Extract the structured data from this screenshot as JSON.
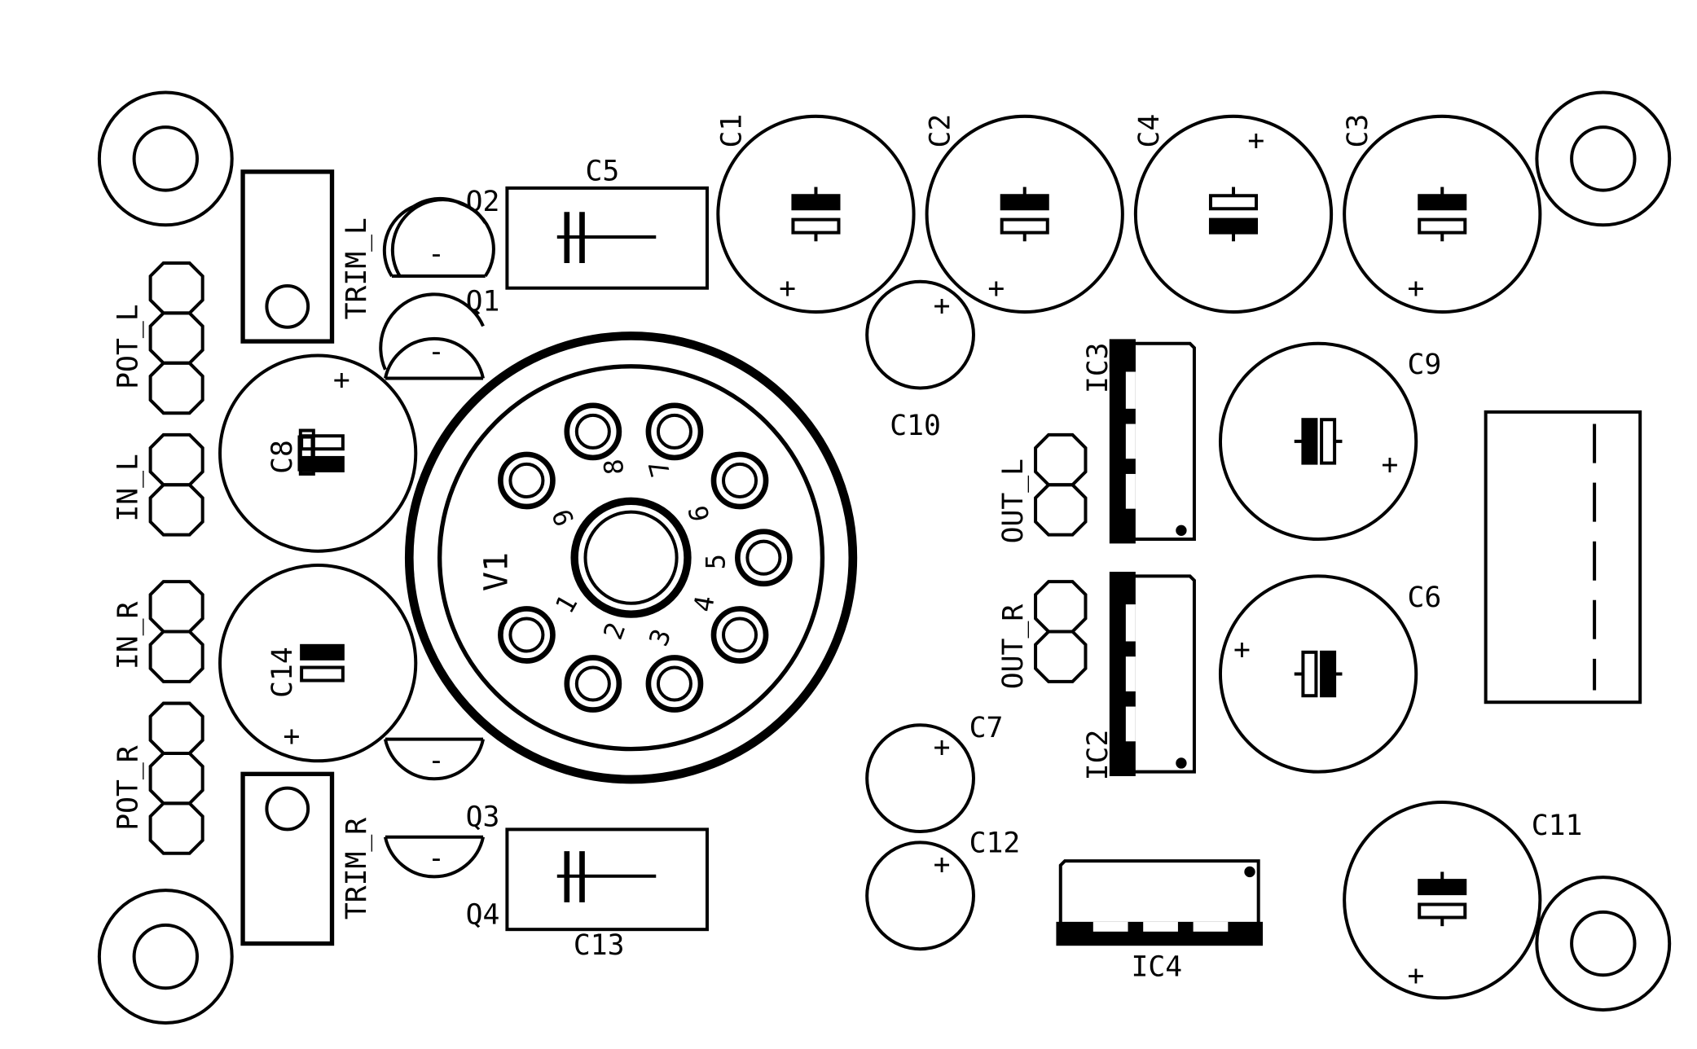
{
  "colors": {
    "ink": "#000000",
    "background": "#ffffff"
  },
  "labels": {
    "C1": "C1",
    "C2": "C2",
    "C4": "C4",
    "C3": "C3",
    "C5": "C5",
    "C13": "C13",
    "C10": "C10",
    "C9": "C9",
    "C6": "C6",
    "C7": "C7",
    "C12": "C12",
    "C11": "C11",
    "C8": "C8",
    "C14": "C14",
    "IC3": "IC3",
    "IC2": "IC2",
    "IC4": "IC4",
    "Q1": "Q1",
    "Q2": "Q2",
    "Q3": "Q3",
    "Q4": "Q4",
    "TRIM_L": "TRIM_L",
    "TRIM_R": "TRIM_R",
    "POT_L": "POT_L",
    "POT_R": "POT_R",
    "IN_L": "IN_L",
    "IN_R": "IN_R",
    "OUT_L": "OUT_L",
    "OUT_R": "OUT_R",
    "V1": "V1"
  },
  "tube_pins": [
    "1",
    "2",
    "3",
    "4",
    "5",
    "6",
    "7",
    "8",
    "9"
  ],
  "polarity": {
    "plus": "+",
    "minus": "-"
  }
}
